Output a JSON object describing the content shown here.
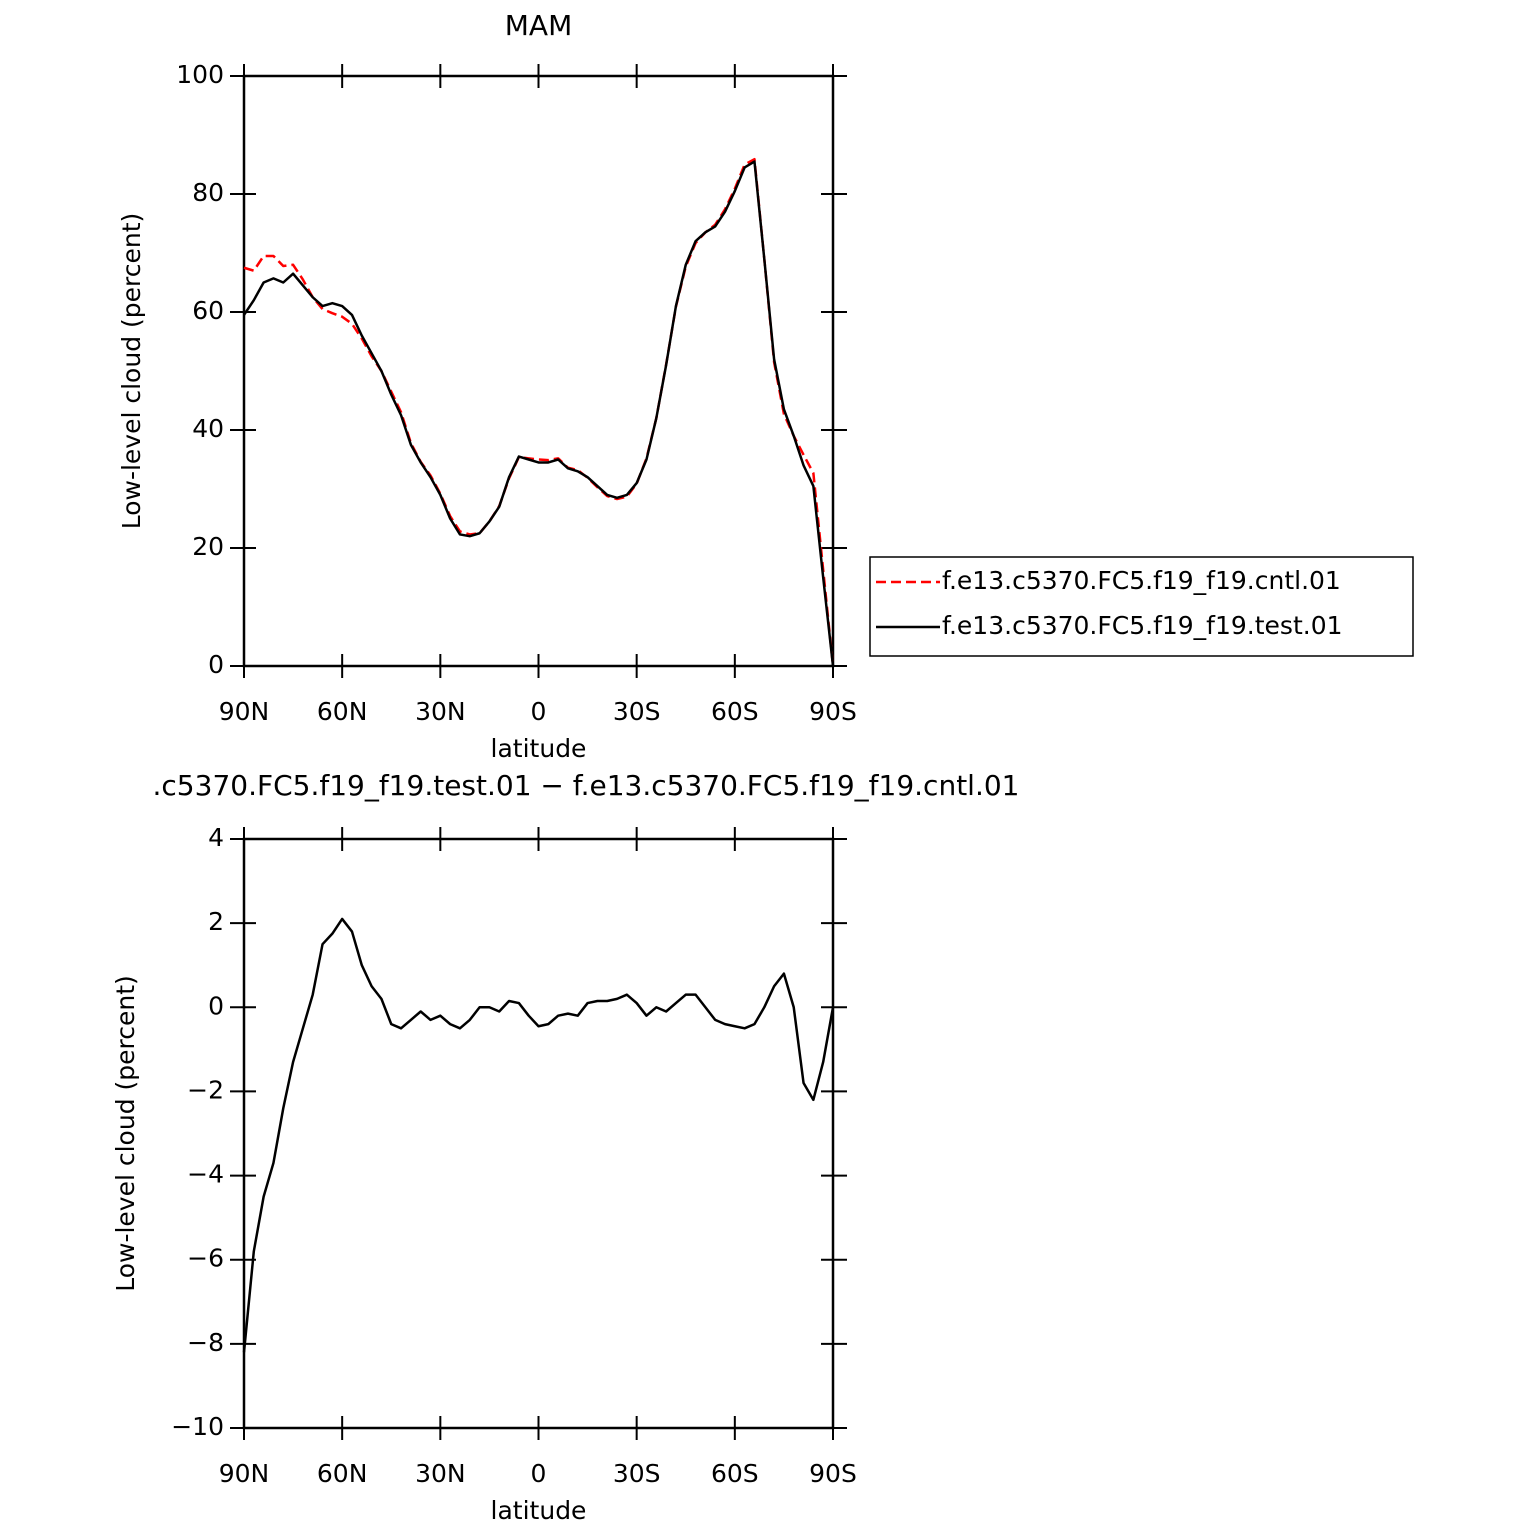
{
  "chart_data": [
    {
      "type": "line",
      "title": "MAM",
      "xlabel": "latitude",
      "ylabel": "Low-level cloud (percent)",
      "x": [
        90,
        87,
        84,
        81,
        78,
        75,
        72,
        69,
        66,
        63,
        60,
        57,
        54,
        51,
        48,
        45,
        42,
        39,
        36,
        33,
        30,
        27,
        24,
        21,
        18,
        15,
        12,
        9,
        6,
        3,
        0,
        -3,
        -6,
        -9,
        -12,
        -15,
        -18,
        -21,
        -24,
        -27,
        -30,
        -33,
        -36,
        -39,
        -42,
        -45,
        -48,
        -51,
        -54,
        -57,
        -60,
        -63,
        -66,
        -69,
        -72,
        -75,
        -78,
        -81,
        -84,
        -87,
        -90
      ],
      "series": [
        {
          "name": "f.e13.c5370.FC5.f19_f19.cntl.01",
          "color": "#ff0000",
          "dashed": true,
          "values": [
            67.5,
            67,
            69.5,
            69.5,
            67.8,
            68,
            65.5,
            62.5,
            60.5,
            59.8,
            59.2,
            58,
            55.5,
            52.5,
            50,
            46.5,
            43,
            37.8,
            34.6,
            32.3,
            29.2,
            25.4,
            22.8,
            22.3,
            22.5,
            24.5,
            27.1,
            31.8,
            35.4,
            35.2,
            35,
            34.9,
            35.2,
            33.6,
            33.2,
            31.9,
            30.3,
            28.8,
            28.3,
            28.7,
            30.9,
            35.2,
            42,
            51.1,
            60.9,
            67.7,
            71.7,
            73.5,
            74.8,
            77.4,
            80.9,
            85,
            85.9,
            69,
            51.5,
            42.7,
            39,
            35.8,
            32.7,
            16.3,
            0
          ]
        },
        {
          "name": "f.e13.c5370.FC5.f19_f19.test.01",
          "color": "#000000",
          "dashed": false,
          "values": [
            59.5,
            62,
            65,
            65.7,
            65,
            66.5,
            64.5,
            62.5,
            61,
            61.5,
            61,
            59.5,
            56,
            53,
            50,
            46,
            42.5,
            37.5,
            34.5,
            32,
            29,
            25,
            22.3,
            22,
            22.5,
            24.5,
            27,
            32,
            35.5,
            35,
            34.5,
            34.5,
            35,
            33.5,
            33,
            32,
            30.5,
            29,
            28.5,
            29,
            31,
            35,
            42,
            51,
            61,
            68,
            72,
            73.5,
            74.5,
            77,
            80.5,
            84.5,
            85.5,
            69,
            52,
            43.5,
            39,
            34,
            30.5,
            15,
            0
          ]
        }
      ],
      "xlim": [
        90,
        -90
      ],
      "xticks": [
        {
          "value": 90,
          "label": "90N"
        },
        {
          "value": 60,
          "label": "60N"
        },
        {
          "value": 30,
          "label": "30N"
        },
        0,
        {
          "value": -30,
          "label": "30S"
        },
        {
          "value": -60,
          "label": "60S"
        },
        {
          "value": -90,
          "label": "90S"
        }
      ],
      "ylim": [
        0,
        100
      ],
      "yticks": [
        0,
        20,
        40,
        60,
        80,
        100
      ],
      "legend": "right"
    },
    {
      "type": "line",
      "title": ".c5370.FC5.f19_f19.test.01 − f.e13.c5370.FC5.f19_f19.cntl.01",
      "xlabel": "latitude",
      "ylabel": "Low-level cloud (percent)",
      "x": [
        90,
        87,
        84,
        81,
        78,
        75,
        72,
        69,
        66,
        63,
        60,
        57,
        54,
        51,
        48,
        45,
        42,
        39,
        36,
        33,
        30,
        27,
        24,
        21,
        18,
        15,
        12,
        9,
        6,
        3,
        0,
        -3,
        -6,
        -9,
        -12,
        -15,
        -18,
        -21,
        -24,
        -27,
        -30,
        -33,
        -36,
        -39,
        -42,
        -45,
        -48,
        -51,
        -54,
        -57,
        -60,
        -63,
        -66,
        -69,
        -72,
        -75,
        -78,
        -81,
        -84,
        -87,
        -90
      ],
      "series": [
        {
          "color": "#000000",
          "dashed": false,
          "values": [
            -8.2,
            -5.8,
            -4.5,
            -3.7,
            -2.4,
            -1.3,
            -0.5,
            0.3,
            1.5,
            1.75,
            2.1,
            1.8,
            1.0,
            0.5,
            0.2,
            -0.4,
            -0.5,
            -0.3,
            -0.1,
            -0.3,
            -0.2,
            -0.4,
            -0.5,
            -0.3,
            0.0,
            0.0,
            -0.1,
            0.15,
            0.1,
            -0.2,
            -0.45,
            -0.4,
            -0.2,
            -0.15,
            -0.2,
            0.1,
            0.15,
            0.15,
            0.2,
            0.3,
            0.1,
            -0.2,
            0.0,
            -0.1,
            0.1,
            0.3,
            0.3,
            0.0,
            -0.3,
            -0.4,
            -0.45,
            -0.5,
            -0.4,
            0.0,
            0.5,
            0.8,
            0.0,
            -1.8,
            -2.2,
            -1.3,
            0
          ]
        }
      ],
      "xlim": [
        90,
        -90
      ],
      "xticks": [
        {
          "value": 90,
          "label": "90N"
        },
        {
          "value": 60,
          "label": "60N"
        },
        {
          "value": 30,
          "label": "30N"
        },
        0,
        {
          "value": -30,
          "label": "30S"
        },
        {
          "value": -60,
          "label": "60S"
        },
        {
          "value": -90,
          "label": "90S"
        }
      ],
      "ylim": [
        -10,
        4
      ],
      "yticks": [
        {
          "value": -10,
          "label": "−10"
        },
        {
          "value": -8,
          "label": "−8"
        },
        {
          "value": -6,
          "label": "−6"
        },
        {
          "value": -4,
          "label": "−4"
        },
        {
          "value": -2,
          "label": "−2"
        },
        0,
        2,
        4
      ]
    }
  ]
}
